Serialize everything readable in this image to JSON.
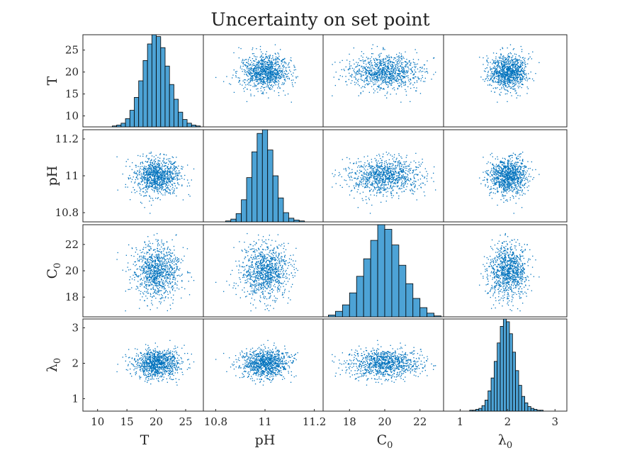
{
  "chart_data": {
    "type": "scatter-matrix",
    "title": "Uncertainty on set point",
    "color": "#0072BD",
    "bar_color": "#4DA3D6",
    "variables": [
      {
        "key": "T",
        "label": "T",
        "label_base": "T",
        "label_sub": "",
        "mean": 20,
        "std": 2,
        "range": [
          7.5,
          28.5
        ],
        "ticks": [
          10,
          15,
          20,
          25
        ],
        "tick_labels": [
          "10",
          "15",
          "20",
          "25"
        ],
        "xrange": [
          7.5,
          28.5
        ]
      },
      {
        "key": "pH",
        "label": "pH",
        "label_base": "pH",
        "label_sub": "",
        "mean": 11.0,
        "std": 0.05,
        "range": [
          10.75,
          11.25
        ],
        "ticks": [
          10.8,
          11,
          11.2
        ],
        "tick_labels": [
          "10.8",
          "11",
          "11.2"
        ],
        "xrange": [
          10.75,
          11.25
        ]
      },
      {
        "key": "C0",
        "label": "C0",
        "label_base": "C",
        "label_sub": "0",
        "mean": 20,
        "std": 1.0,
        "range": [
          16.5,
          23.5
        ],
        "ticks": [
          18,
          20,
          22
        ],
        "tick_labels": [
          "18",
          "20",
          "22"
        ],
        "xrange": [
          16.5,
          23.5
        ]
      },
      {
        "key": "lambda0",
        "label": "λ0",
        "label_base": "λ",
        "label_sub": "0",
        "mean": 2.0,
        "std": 0.2,
        "range": [
          0.65,
          3.25
        ],
        "ticks": [
          1,
          2,
          3
        ],
        "tick_labels": [
          "1",
          "2",
          "3"
        ],
        "xrange": [
          0.65,
          3.25
        ]
      }
    ],
    "samples": 1000,
    "histograms": [
      {
        "key": "T",
        "bins_count": 20,
        "bin_range": [
          12.5,
          27.5
        ],
        "counts": [
          1,
          2,
          4,
          9,
          18,
          32,
          50,
          72,
          90,
          100,
          98,
          86,
          66,
          46,
          30,
          16,
          8,
          4,
          2,
          1
        ],
        "peak_fraction": 1.0
      },
      {
        "key": "pH",
        "bins_count": 15,
        "bin_range": [
          10.84,
          11.16
        ],
        "counts": [
          1,
          3,
          9,
          24,
          48,
          76,
          96,
          100,
          78,
          50,
          26,
          10,
          4,
          2,
          1
        ],
        "peak_fraction": 1.0
      },
      {
        "key": "C0",
        "bins_count": 16,
        "bin_range": [
          16.8,
          23.2
        ],
        "counts": [
          2,
          6,
          13,
          26,
          44,
          63,
          83,
          100,
          95,
          78,
          56,
          36,
          20,
          10,
          4,
          1
        ],
        "peak_fraction": 1.0
      },
      {
        "key": "lambda0",
        "bins_count": 24,
        "bin_range": [
          1.2,
          2.75
        ],
        "counts": [
          1,
          1,
          2,
          3,
          6,
          12,
          22,
          36,
          54,
          74,
          92,
          100,
          97,
          84,
          64,
          44,
          28,
          16,
          9,
          5,
          3,
          2,
          1,
          1
        ],
        "peak_fraction": 1.0
      }
    ]
  }
}
